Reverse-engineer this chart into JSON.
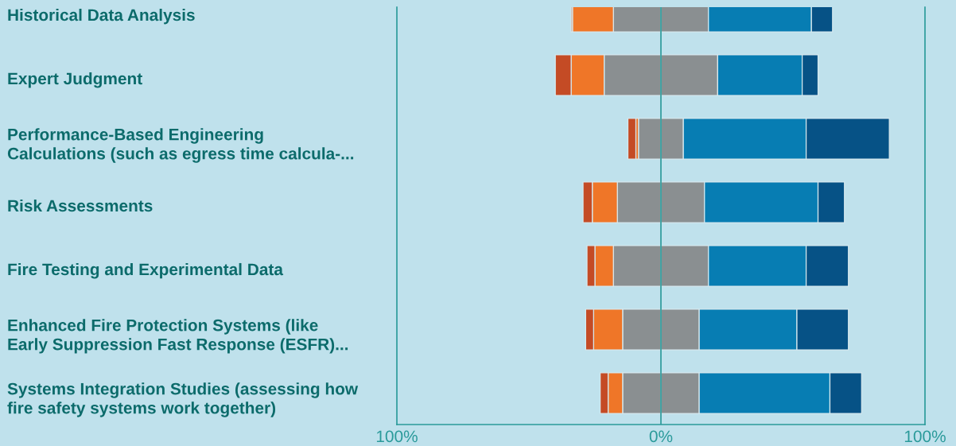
{
  "chart_data": {
    "type": "bar",
    "orientation": "horizontal",
    "stacked": true,
    "categories": [
      "Historical Data Analysis",
      "Expert Judgment",
      "Performance-Based Engineering\nCalculations (such as egress time calcula-...",
      "Risk Assessments",
      "Fire Testing and Experimental Data",
      "Enhanced Fire Protection Systems (like\nEarly Suppression Fast Response (ESFR)...",
      "Systems Integration Studies (assessing how\nfire safety systems work together)"
    ],
    "series": [
      {
        "color": "#8a8f91",
        "values": [
          -18,
          -21.5,
          -8.5,
          -16.5,
          -18,
          -14.5,
          -14.5
        ]
      },
      {
        "color": "#ef7628",
        "values": [
          -15.5,
          -12.5,
          -1,
          -9.5,
          -7,
          -11,
          -5.5
        ]
      },
      {
        "color": "#c44b25",
        "values": [
          -0.5,
          -6,
          -3,
          -3.5,
          -3,
          -3,
          -3
        ]
      },
      {
        "color": "#8a8f91",
        "values": [
          18,
          21.5,
          8.5,
          16.5,
          18,
          14.5,
          14.5
        ]
      },
      {
        "color": "#077db3",
        "values": [
          39,
          32,
          46.5,
          43,
          37,
          37,
          49.5
        ]
      },
      {
        "color": "#065286",
        "values": [
          8,
          6,
          31.5,
          10,
          16,
          19.5,
          12
        ]
      }
    ],
    "xlim": [
      -100,
      100
    ],
    "xticks": [
      {
        "value": -100,
        "label": "100%"
      },
      {
        "value": 0,
        "label": "0%"
      },
      {
        "value": 100,
        "label": "100%"
      }
    ],
    "ref_lines": [
      {
        "axis": "x",
        "value": 0,
        "color": "#2a9a9a"
      }
    ]
  }
}
